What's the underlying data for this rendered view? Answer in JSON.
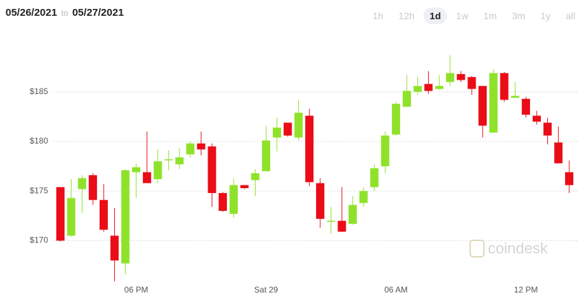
{
  "header": {
    "start_date": "05/26/2021",
    "separator": "to",
    "end_date": "05/27/2021"
  },
  "range_buttons": [
    "1h",
    "12h",
    "1d",
    "1w",
    "1m",
    "3m",
    "1y",
    "all"
  ],
  "selected_range": "1d",
  "chart_data": {
    "type": "candlestick",
    "watermark": "coindesk",
    "categories": [
      null,
      null,
      null,
      null,
      null,
      null,
      null,
      "06 PM",
      null,
      null,
      null,
      null,
      null,
      null,
      null,
      null,
      null,
      null,
      null,
      "Sat 29",
      null,
      null,
      null,
      null,
      null,
      null,
      null,
      null,
      null,
      null,
      null,
      "06 AM",
      null,
      null,
      null,
      null,
      null,
      null,
      null,
      null,
      null,
      null,
      null,
      "12 PM",
      null,
      null,
      null,
      null
    ],
    "open": [
      175.4,
      170.5,
      175.2,
      176.6,
      174.1,
      170.5,
      167.7,
      176.9,
      176.9,
      176.2,
      178.1,
      177.7,
      178.7,
      179.8,
      179.5,
      174.8,
      172.7,
      175.6,
      176.1,
      177.0,
      180.4,
      181.9,
      180.4,
      182.6,
      175.8,
      171.9,
      172.0,
      171.7,
      173.8,
      175.4,
      177.5,
      180.7,
      183.5,
      185.0,
      185.8,
      185.3,
      186.0,
      186.8,
      186.5,
      185.6,
      180.9,
      186.9,
      184.4,
      184.3,
      182.6,
      181.9,
      179.9,
      176.9
    ],
    "high": [
      175.4,
      176.2,
      176.6,
      176.8,
      175.7,
      173.3,
      177.2,
      177.8,
      181.0,
      179.2,
      179.1,
      179.3,
      180.0,
      181.0,
      179.8,
      174.9,
      176.3,
      175.6,
      177.2,
      181.6,
      182.4,
      181.9,
      184.2,
      183.3,
      176.3,
      173.4,
      175.4,
      174.5,
      175.4,
      177.7,
      181.0,
      184.0,
      186.7,
      186.5,
      187.1,
      186.7,
      188.7,
      187.1,
      186.6,
      185.6,
      187.3,
      187.0,
      186.0,
      184.5,
      183.1,
      182.4,
      181.5,
      178.1
    ],
    "low": [
      169.9,
      170.4,
      172.8,
      173.6,
      170.9,
      165.9,
      166.6,
      174.3,
      175.8,
      175.8,
      177.1,
      177.2,
      178.4,
      178.6,
      173.4,
      172.9,
      172.3,
      175.2,
      174.5,
      177.0,
      179.0,
      180.5,
      180.1,
      175.5,
      171.3,
      170.7,
      170.9,
      171.6,
      173.4,
      175.0,
      176.8,
      180.6,
      183.5,
      184.7,
      184.8,
      185.2,
      185.6,
      186.0,
      184.7,
      180.4,
      180.9,
      184.0,
      184.4,
      182.4,
      181.7,
      179.7,
      177.8,
      174.8
    ],
    "close": [
      170.0,
      174.3,
      176.3,
      174.1,
      171.1,
      168.0,
      177.1,
      177.4,
      175.8,
      178.0,
      178.2,
      178.4,
      179.8,
      179.2,
      174.8,
      173.0,
      175.6,
      175.3,
      176.8,
      180.1,
      181.4,
      180.6,
      182.9,
      175.9,
      172.2,
      172.0,
      170.9,
      173.6,
      175.0,
      177.3,
      180.6,
      183.8,
      185.1,
      185.6,
      185.1,
      185.6,
      186.9,
      186.2,
      185.3,
      181.6,
      186.9,
      184.2,
      184.6,
      182.7,
      182.0,
      180.6,
      177.8,
      175.6
    ],
    "up_color": "#8fe22a",
    "down_color": "#ea0c16",
    "ylim": [
      165.6,
      191.5
    ],
    "yticks": [
      {
        "value": 170,
        "label": "$170"
      },
      {
        "value": 175,
        "label": "$175"
      },
      {
        "value": 180,
        "label": "$180"
      },
      {
        "value": 185,
        "label": "$185"
      }
    ],
    "grid": true
  }
}
